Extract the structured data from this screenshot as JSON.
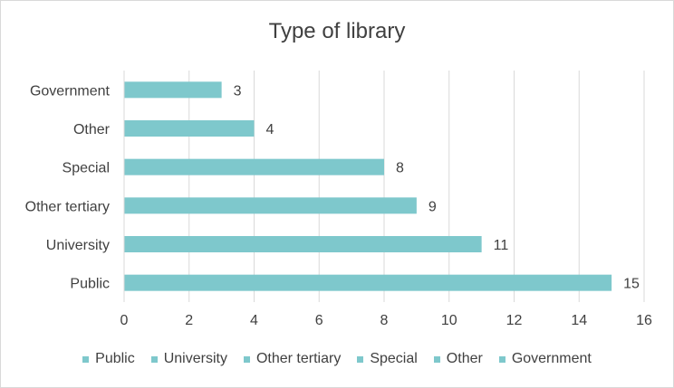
{
  "chart_data": {
    "type": "bar",
    "orientation": "horizontal",
    "title": "Type of library",
    "categories": [
      "Public",
      "University",
      "Other tertiary",
      "Special",
      "Other",
      "Government"
    ],
    "values": [
      15,
      11,
      9,
      8,
      4,
      3
    ],
    "data_labels": [
      "15",
      "11",
      "9",
      "8",
      "4",
      "3"
    ],
    "xlabel": "",
    "ylabel": "",
    "xlim": [
      0,
      16
    ],
    "x_ticks": [
      "0",
      "2",
      "4",
      "6",
      "8",
      "10",
      "12",
      "14",
      "16"
    ],
    "grid": "vertical",
    "legend_position": "bottom",
    "legend": [
      "Public",
      "University",
      "Other tertiary",
      "Special",
      "Other",
      "Government"
    ],
    "bar_color": "#7ec8cc"
  }
}
